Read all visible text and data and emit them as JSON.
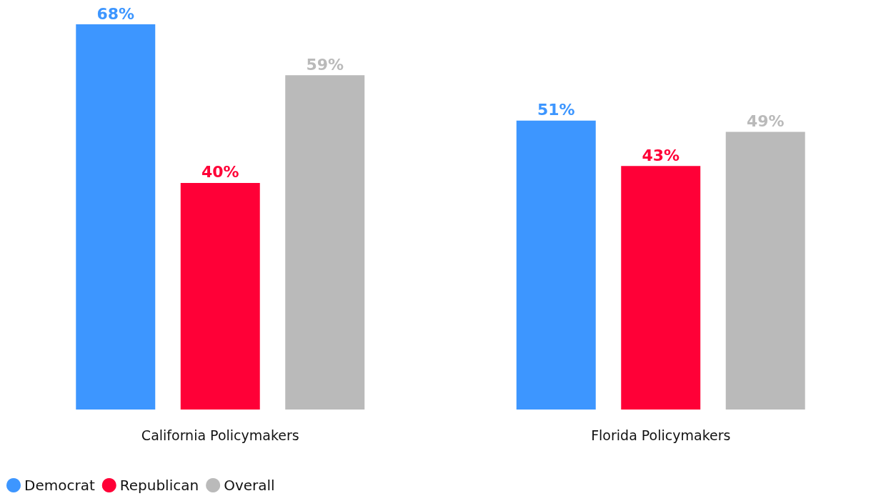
{
  "chart_data": {
    "type": "bar",
    "categories": [
      "California Policymakers",
      "Florida Policymakers"
    ],
    "series": [
      {
        "name": "Democrat",
        "color": "#3d96ff",
        "values": [
          68,
          51
        ],
        "value_labels": [
          "68%",
          "51%"
        ]
      },
      {
        "name": "Republican",
        "color": "#ff0037",
        "values": [
          40,
          43
        ],
        "value_labels": [
          "40%",
          "43%"
        ]
      },
      {
        "name": "Overall",
        "color": "#bababa",
        "values": [
          59,
          49
        ],
        "value_labels": [
          "59%",
          "49%"
        ]
      }
    ],
    "legend": "bottom left"
  }
}
